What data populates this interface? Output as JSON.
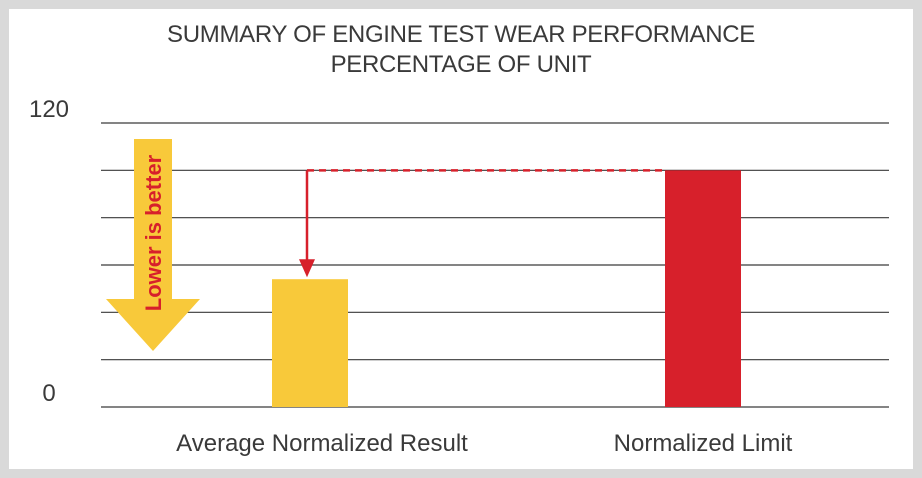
{
  "chart_data": {
    "type": "bar",
    "title": "SUMMARY OF ENGINE TEST WEAR PERFORMANCE",
    "subtitle": "PERCENTAGE OF UNIT",
    "categories": [
      "Average Normalized Result",
      "Normalized Limit"
    ],
    "values": [
      54,
      100
    ],
    "colors": [
      "#f8c93a",
      "#d7202b"
    ],
    "ylim": [
      0,
      120
    ],
    "yticks": [
      0,
      20,
      40,
      60,
      80,
      100,
      120
    ],
    "ytick_labels": [
      "0",
      "120"
    ],
    "grid": true,
    "annotation": "Lower is better",
    "annotation_arrow_color": "#f8c93a",
    "limit_line_color": "#d7202b"
  }
}
